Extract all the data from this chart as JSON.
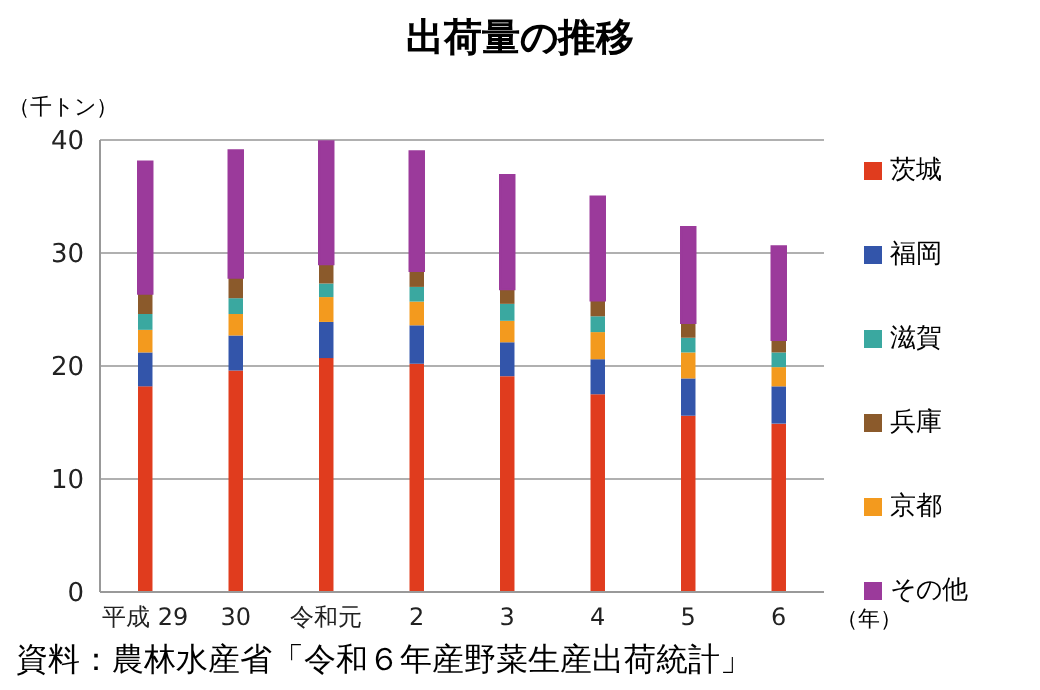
{
  "chart_data": {
    "type": "bar",
    "title": "出荷量の推移",
    "ylabel": "（千トン）",
    "xlabel": "（年）",
    "categories": [
      "平成 29",
      "30",
      "令和元",
      "2",
      "3",
      "4",
      "5",
      "6"
    ],
    "stacked": true,
    "ylim": [
      0,
      40
    ],
    "yticks": [
      0,
      10,
      20,
      30,
      40
    ],
    "grid": "y",
    "legend": "right",
    "series": [
      {
        "name": "茨城",
        "color": "#e03c1e",
        "values": [
          18.2,
          19.6,
          20.7,
          20.2,
          19.1,
          17.5,
          15.6,
          14.9
        ]
      },
      {
        "name": "福岡",
        "color": "#3355aa",
        "values": [
          3.0,
          3.1,
          3.2,
          3.4,
          3.0,
          3.1,
          3.3,
          3.3
        ]
      },
      {
        "name": "京都",
        "color": "#f39a1e",
        "values": [
          2.0,
          1.9,
          2.2,
          2.1,
          1.9,
          2.4,
          2.3,
          1.7
        ]
      },
      {
        "name": "滋賀",
        "color": "#3aa8a0",
        "values": [
          1.4,
          1.4,
          1.2,
          1.3,
          1.5,
          1.4,
          1.3,
          1.3
        ]
      },
      {
        "name": "兵庫",
        "color": "#8b5a2b",
        "values": [
          1.8,
          1.8,
          1.7,
          1.4,
          1.3,
          1.4,
          1.3,
          1.1
        ]
      },
      {
        "name": "その他",
        "color": "#9b3a9b",
        "values": [
          11.7,
          11.3,
          10.9,
          10.6,
          10.1,
          9.2,
          8.5,
          8.3
        ]
      }
    ],
    "annotations": [
      "資料：農林水産省「令和６年産野菜生産出荷統計」"
    ]
  }
}
